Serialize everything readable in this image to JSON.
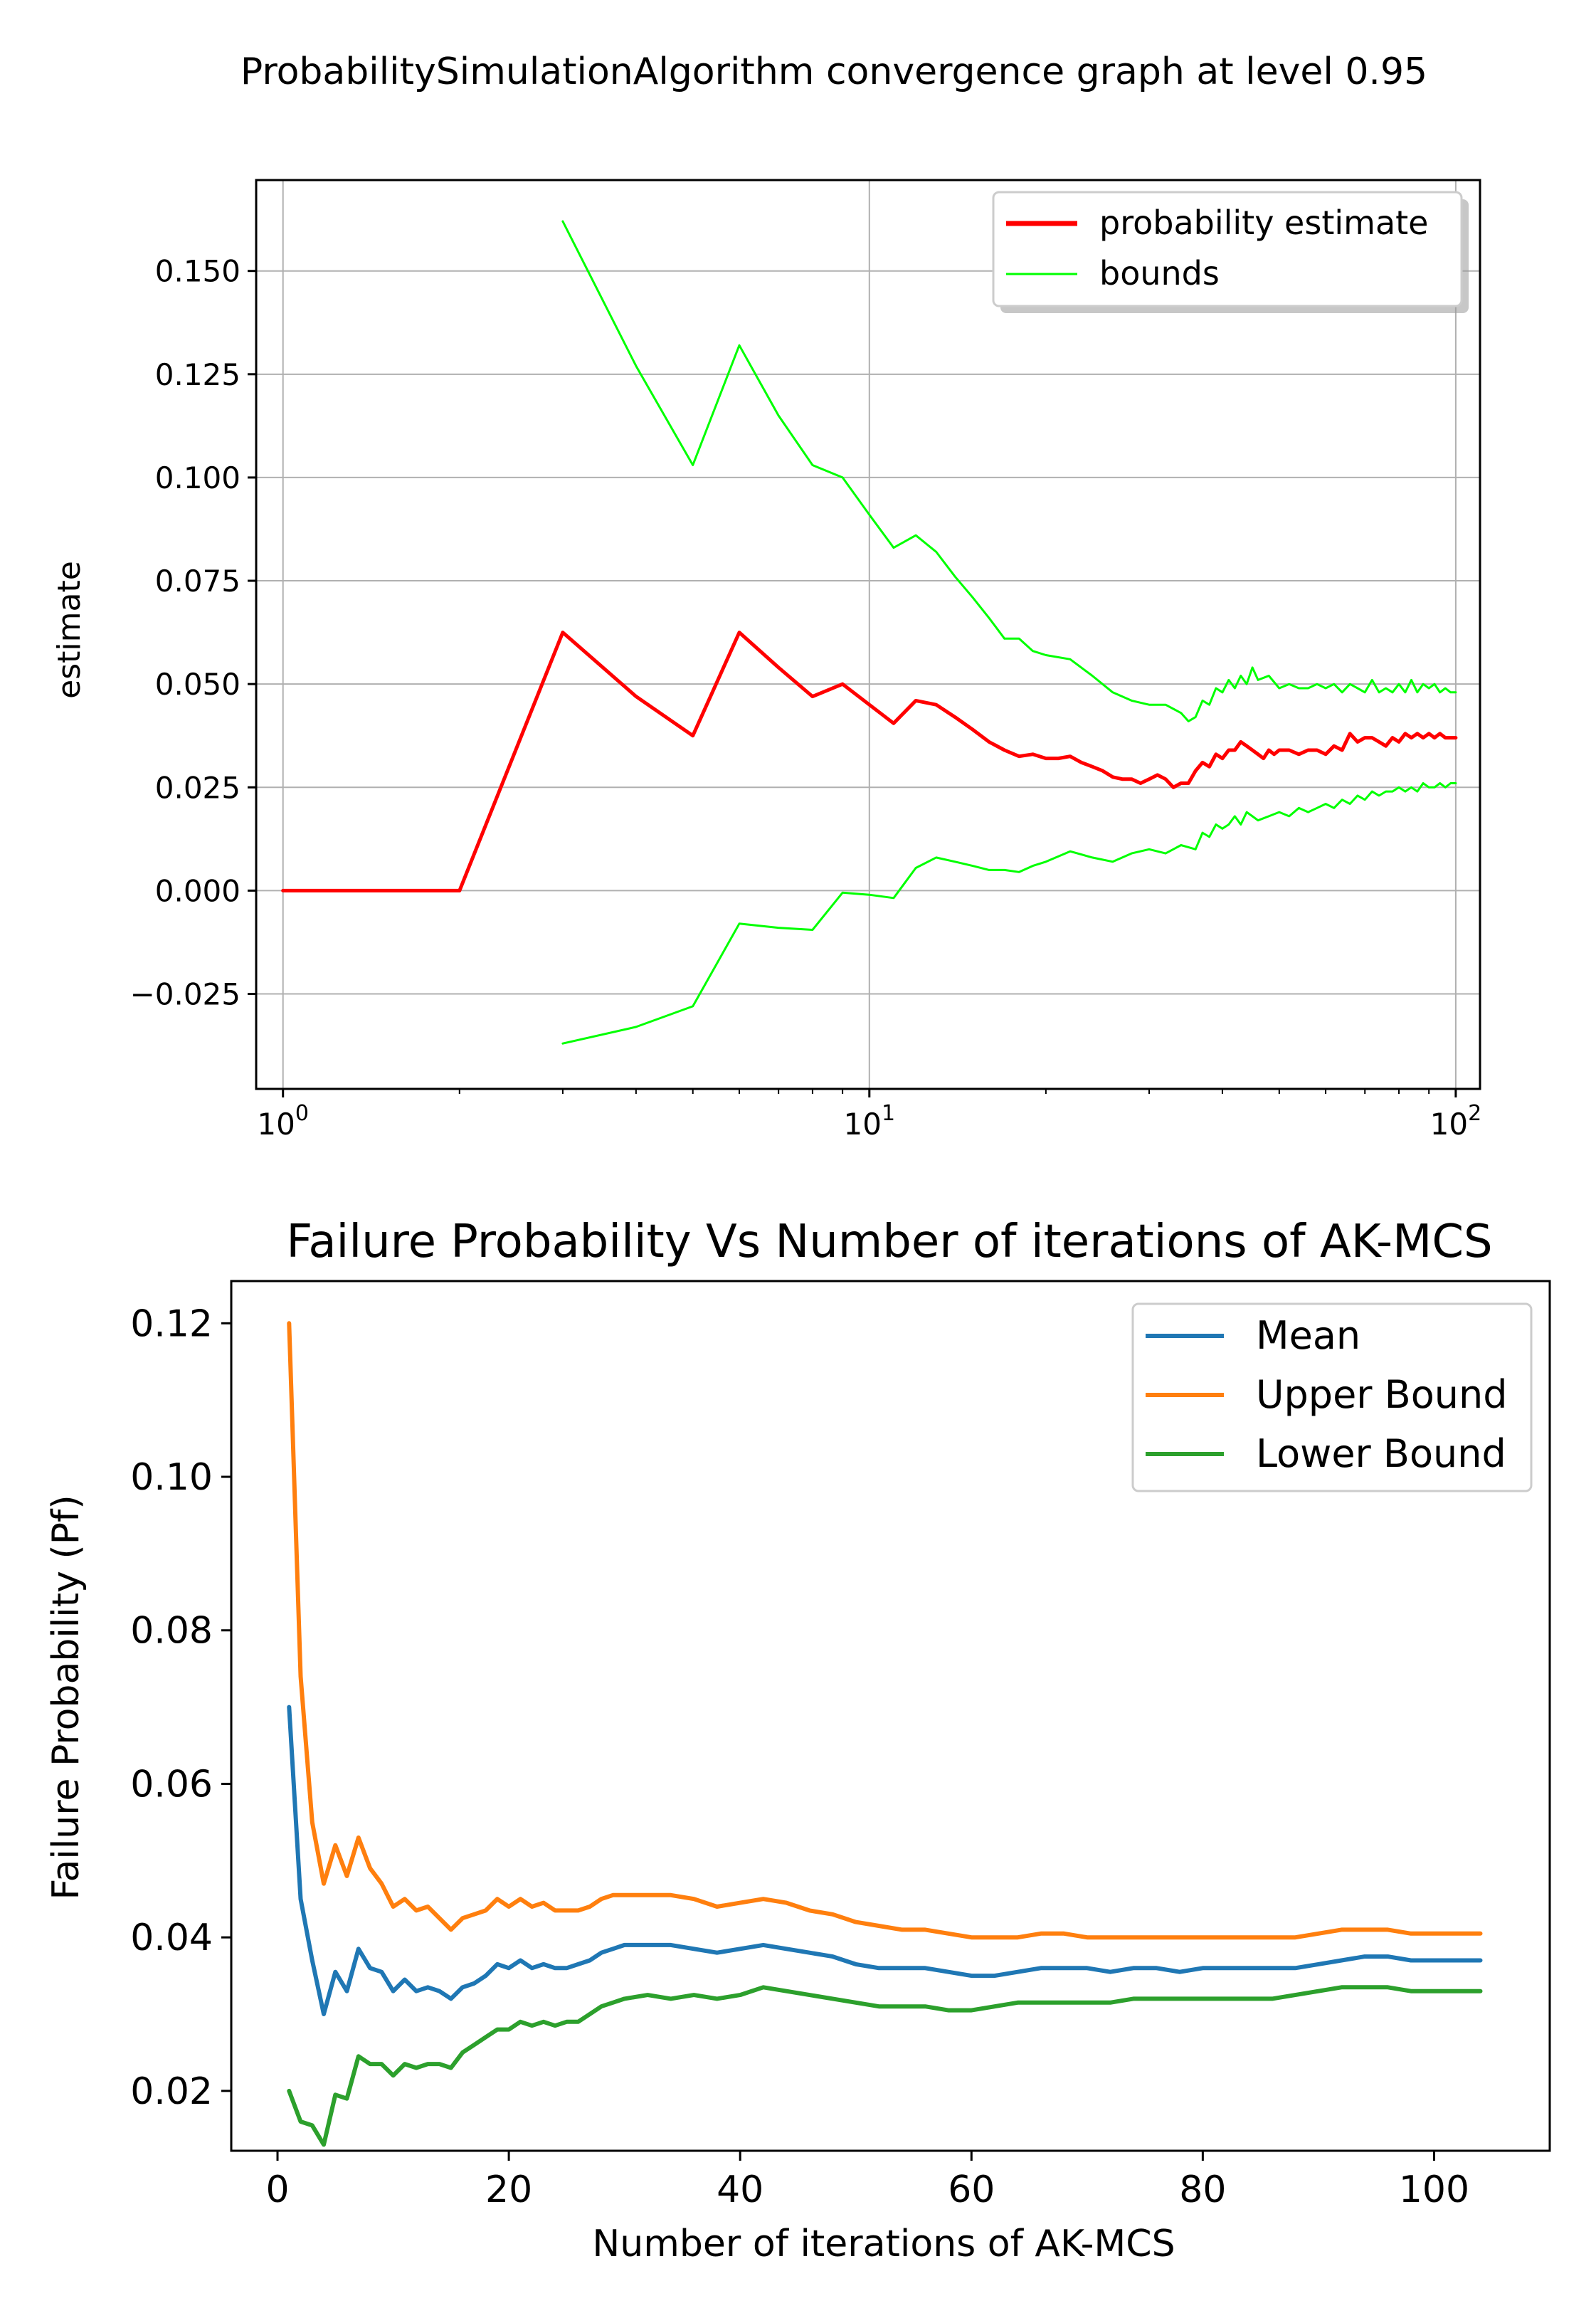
{
  "chart_data": [
    {
      "type": "line",
      "title": "ProbabilitySimulationAlgorithm convergence graph at level 0.95",
      "xlabel": "",
      "ylabel": "estimate",
      "xscale": "log",
      "xlim": [
        0.9,
        110
      ],
      "ylim": [
        -0.048,
        0.172
      ],
      "xticks": [
        1,
        10,
        100
      ],
      "xtick_labels": [
        {
          "base": "10",
          "exp": "0"
        },
        {
          "base": "10",
          "exp": "1"
        },
        {
          "base": "10",
          "exp": "2"
        }
      ],
      "yticks": [
        -0.025,
        0.0,
        0.025,
        0.05,
        0.075,
        0.1,
        0.125,
        0.15
      ],
      "ytick_labels": [
        "−0.025",
        "0.000",
        "0.025",
        "0.050",
        "0.075",
        "0.100",
        "0.125",
        "0.150"
      ],
      "grid": true,
      "legend_position": "top-right",
      "legend_shadow": true,
      "series": [
        {
          "name": "probability estimate",
          "color": "#ff0000",
          "width": 5,
          "x": [
            1,
            2,
            3,
            4,
            5,
            6,
            7,
            8,
            9,
            10,
            11,
            12,
            13,
            14,
            15,
            16,
            17,
            18,
            19,
            20,
            21,
            22,
            23,
            24,
            25,
            26,
            27,
            28,
            29,
            30,
            31,
            32,
            33,
            34,
            35,
            36,
            37,
            38,
            39,
            40,
            41,
            42,
            43,
            44,
            45,
            46,
            47,
            48,
            49,
            50,
            52,
            54,
            56,
            58,
            60,
            62,
            64,
            66,
            68,
            70,
            72,
            74,
            76,
            78,
            80,
            82,
            84,
            86,
            88,
            90,
            92,
            94,
            96,
            98,
            100
          ],
          "y": [
            0,
            0,
            0.0625,
            0.047,
            0.0375,
            0.0625,
            0.054,
            0.047,
            0.05,
            0.045,
            0.0405,
            0.046,
            0.045,
            0.042,
            0.039,
            0.036,
            0.034,
            0.0325,
            0.033,
            0.032,
            0.032,
            0.0325,
            0.031,
            0.03,
            0.029,
            0.0275,
            0.027,
            0.027,
            0.026,
            0.027,
            0.028,
            0.027,
            0.025,
            0.026,
            0.026,
            0.029,
            0.031,
            0.03,
            0.033,
            0.032,
            0.034,
            0.034,
            0.036,
            0.035,
            0.034,
            0.033,
            0.032,
            0.034,
            0.033,
            0.034,
            0.034,
            0.033,
            0.034,
            0.034,
            0.033,
            0.035,
            0.034,
            0.038,
            0.036,
            0.037,
            0.037,
            0.036,
            0.035,
            0.037,
            0.036,
            0.038,
            0.037,
            0.038,
            0.037,
            0.038,
            0.037,
            0.038,
            0.037,
            0.037,
            0.037
          ]
        },
        {
          "name": "bounds",
          "color": "#00ff00",
          "width": 3,
          "x": [
            3,
            4,
            5,
            6,
            7,
            8,
            9,
            10,
            11,
            12,
            13,
            14,
            15,
            16,
            17,
            18,
            19,
            20,
            22,
            24,
            26,
            28,
            30,
            32,
            34,
            35,
            36,
            37,
            38,
            39,
            40,
            41,
            42,
            43,
            44,
            45,
            46,
            48,
            50,
            52,
            54,
            56,
            58,
            60,
            62,
            64,
            66,
            68,
            70,
            72,
            74,
            76,
            78,
            80,
            82,
            84,
            86,
            88,
            90,
            92,
            94,
            96,
            98,
            100
          ],
          "y": [
            0.162,
            0.127,
            0.103,
            0.132,
            0.115,
            0.103,
            0.1,
            0.091,
            0.083,
            0.086,
            0.082,
            0.076,
            0.071,
            0.066,
            0.061,
            0.061,
            0.058,
            0.057,
            0.056,
            0.052,
            0.048,
            0.046,
            0.045,
            0.045,
            0.043,
            0.041,
            0.042,
            0.046,
            0.045,
            0.049,
            0.048,
            0.051,
            0.049,
            0.052,
            0.05,
            0.054,
            0.051,
            0.052,
            0.049,
            0.05,
            0.049,
            0.049,
            0.05,
            0.049,
            0.05,
            0.048,
            0.05,
            0.049,
            0.048,
            0.051,
            0.048,
            0.049,
            0.048,
            0.05,
            0.048,
            0.051,
            0.048,
            0.05,
            0.049,
            0.05,
            0.048,
            0.049,
            0.048,
            0.048
          ]
        },
        {
          "name": "",
          "color": "#00ff00",
          "width": 3,
          "x": [
            3,
            4,
            5,
            6,
            7,
            8,
            9,
            10,
            11,
            12,
            13,
            14,
            15,
            16,
            17,
            18,
            19,
            20,
            22,
            24,
            26,
            28,
            30,
            32,
            34,
            35,
            36,
            37,
            38,
            39,
            40,
            41,
            42,
            43,
            44,
            45,
            46,
            48,
            50,
            52,
            54,
            56,
            58,
            60,
            62,
            64,
            66,
            68,
            70,
            72,
            74,
            76,
            78,
            80,
            82,
            84,
            86,
            88,
            90,
            92,
            94,
            96,
            98,
            100
          ],
          "y": [
            -0.037,
            -0.033,
            -0.028,
            -0.008,
            -0.009,
            -0.0095,
            -0.0005,
            -0.001,
            -0.0018,
            0.0055,
            0.008,
            0.007,
            0.006,
            0.005,
            0.005,
            0.0045,
            0.006,
            0.007,
            0.0095,
            0.008,
            0.007,
            0.009,
            0.01,
            0.009,
            0.011,
            0.0105,
            0.01,
            0.014,
            0.013,
            0.016,
            0.015,
            0.016,
            0.018,
            0.016,
            0.019,
            0.018,
            0.017,
            0.018,
            0.019,
            0.018,
            0.02,
            0.019,
            0.02,
            0.021,
            0.02,
            0.022,
            0.021,
            0.023,
            0.022,
            0.024,
            0.023,
            0.024,
            0.024,
            0.025,
            0.024,
            0.025,
            0.024,
            0.026,
            0.025,
            0.025,
            0.026,
            0.025,
            0.026,
            0.026
          ]
        }
      ]
    },
    {
      "type": "line",
      "title": "Failure Probability Vs Number of iterations of AK-MCS",
      "xlabel": "Number of iterations of AK-MCS",
      "ylabel": "Failure Probability (Pf)",
      "xlim": [
        -4,
        110
      ],
      "ylim": [
        0.0122,
        0.1255
      ],
      "xticks": [
        0,
        20,
        40,
        60,
        80,
        100
      ],
      "xtick_labels": [
        "0",
        "20",
        "40",
        "60",
        "80",
        "100"
      ],
      "yticks": [
        0.02,
        0.04,
        0.06,
        0.08,
        0.1,
        0.12
      ],
      "ytick_labels": [
        "0.02",
        "0.04",
        "0.06",
        "0.08",
        "0.10",
        "0.12"
      ],
      "grid": false,
      "legend_position": "top-right",
      "series": [
        {
          "name": "Mean",
          "color": "#1f77b4",
          "x": [
            1,
            2,
            3,
            4,
            5,
            6,
            7,
            8,
            9,
            10,
            11,
            12,
            13,
            14,
            15,
            16,
            17,
            18,
            19,
            20,
            21,
            22,
            23,
            24,
            25,
            26,
            27,
            28,
            29,
            30,
            32,
            34,
            36,
            38,
            40,
            42,
            44,
            46,
            48,
            50,
            52,
            54,
            56,
            58,
            60,
            62,
            64,
            66,
            68,
            70,
            72,
            74,
            76,
            78,
            80,
            82,
            84,
            86,
            88,
            90,
            92,
            94,
            96,
            98,
            100,
            102,
            104
          ],
          "y": [
            0.07,
            0.045,
            0.037,
            0.03,
            0.0355,
            0.033,
            0.0385,
            0.036,
            0.0355,
            0.033,
            0.0345,
            0.033,
            0.0335,
            0.033,
            0.032,
            0.0335,
            0.034,
            0.035,
            0.0365,
            0.036,
            0.037,
            0.036,
            0.0365,
            0.036,
            0.036,
            0.0365,
            0.037,
            0.038,
            0.0385,
            0.039,
            0.039,
            0.039,
            0.0385,
            0.038,
            0.0385,
            0.039,
            0.0385,
            0.038,
            0.0375,
            0.0365,
            0.036,
            0.036,
            0.036,
            0.0355,
            0.035,
            0.035,
            0.0355,
            0.036,
            0.036,
            0.036,
            0.0355,
            0.036,
            0.036,
            0.0355,
            0.036,
            0.036,
            0.036,
            0.036,
            0.036,
            0.0365,
            0.037,
            0.0375,
            0.0375,
            0.037,
            0.037,
            0.037,
            0.037
          ]
        },
        {
          "name": "Upper Bound",
          "color": "#ff7f0e",
          "x": [
            1,
            2,
            3,
            4,
            5,
            6,
            7,
            8,
            9,
            10,
            11,
            12,
            13,
            14,
            15,
            16,
            17,
            18,
            19,
            20,
            21,
            22,
            23,
            24,
            25,
            26,
            27,
            28,
            29,
            30,
            32,
            34,
            36,
            38,
            40,
            42,
            44,
            46,
            48,
            50,
            52,
            54,
            56,
            58,
            60,
            62,
            64,
            66,
            68,
            70,
            72,
            74,
            76,
            78,
            80,
            82,
            84,
            86,
            88,
            90,
            92,
            94,
            96,
            98,
            100,
            102,
            104
          ],
          "y": [
            0.12,
            0.074,
            0.055,
            0.047,
            0.052,
            0.048,
            0.053,
            0.049,
            0.047,
            0.044,
            0.045,
            0.0435,
            0.044,
            0.0425,
            0.041,
            0.0425,
            0.043,
            0.0435,
            0.045,
            0.044,
            0.045,
            0.044,
            0.0445,
            0.0435,
            0.0435,
            0.0435,
            0.044,
            0.045,
            0.0455,
            0.0455,
            0.0455,
            0.0455,
            0.045,
            0.044,
            0.0445,
            0.045,
            0.0445,
            0.0435,
            0.043,
            0.042,
            0.0415,
            0.041,
            0.041,
            0.0405,
            0.04,
            0.04,
            0.04,
            0.0405,
            0.0405,
            0.04,
            0.04,
            0.04,
            0.04,
            0.04,
            0.04,
            0.04,
            0.04,
            0.04,
            0.04,
            0.0405,
            0.041,
            0.041,
            0.041,
            0.0405,
            0.0405,
            0.0405,
            0.0405
          ]
        },
        {
          "name": "Lower Bound",
          "color": "#2ca02c",
          "x": [
            1,
            2,
            3,
            4,
            5,
            6,
            7,
            8,
            9,
            10,
            11,
            12,
            13,
            14,
            15,
            16,
            17,
            18,
            19,
            20,
            21,
            22,
            23,
            24,
            25,
            26,
            27,
            28,
            29,
            30,
            32,
            34,
            36,
            38,
            40,
            42,
            44,
            46,
            48,
            50,
            52,
            54,
            56,
            58,
            60,
            62,
            64,
            66,
            68,
            70,
            72,
            74,
            76,
            78,
            80,
            82,
            84,
            86,
            88,
            90,
            92,
            94,
            96,
            98,
            100,
            102,
            104
          ],
          "y": [
            0.02,
            0.016,
            0.0155,
            0.013,
            0.0195,
            0.019,
            0.0245,
            0.0235,
            0.0235,
            0.022,
            0.0235,
            0.023,
            0.0235,
            0.0235,
            0.023,
            0.025,
            0.026,
            0.027,
            0.028,
            0.028,
            0.029,
            0.0285,
            0.029,
            0.0285,
            0.029,
            0.029,
            0.03,
            0.031,
            0.0315,
            0.032,
            0.0325,
            0.032,
            0.0325,
            0.032,
            0.0325,
            0.0335,
            0.033,
            0.0325,
            0.032,
            0.0315,
            0.031,
            0.031,
            0.031,
            0.0305,
            0.0305,
            0.031,
            0.0315,
            0.0315,
            0.0315,
            0.0315,
            0.0315,
            0.032,
            0.032,
            0.032,
            0.032,
            0.032,
            0.032,
            0.032,
            0.0325,
            0.033,
            0.0335,
            0.0335,
            0.0335,
            0.033,
            0.033,
            0.033,
            0.033
          ]
        }
      ]
    }
  ]
}
